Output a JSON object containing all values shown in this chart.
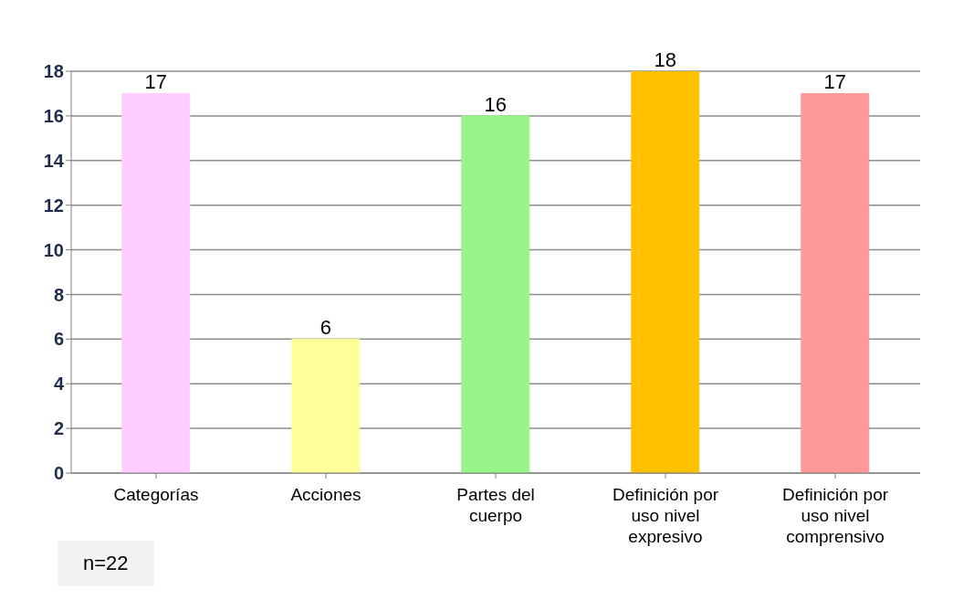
{
  "chart_data": {
    "type": "bar",
    "categories": [
      "Categorías",
      "Acciones",
      "Partes del cuerpo",
      "Definición por uso nivel expresivo",
      "Definición por uso nivel comprensivo"
    ],
    "values": [
      17,
      6,
      16,
      18,
      17
    ],
    "colors": [
      "#ffccff",
      "#ffff99",
      "#99f58a",
      "#ffc000",
      "#ff9999"
    ],
    "ylim": [
      0,
      18
    ],
    "yticks": [
      0,
      2,
      4,
      6,
      8,
      10,
      12,
      14,
      16,
      18
    ],
    "grid": "y",
    "data_labels": true,
    "annotations": [
      "n=22"
    ]
  }
}
